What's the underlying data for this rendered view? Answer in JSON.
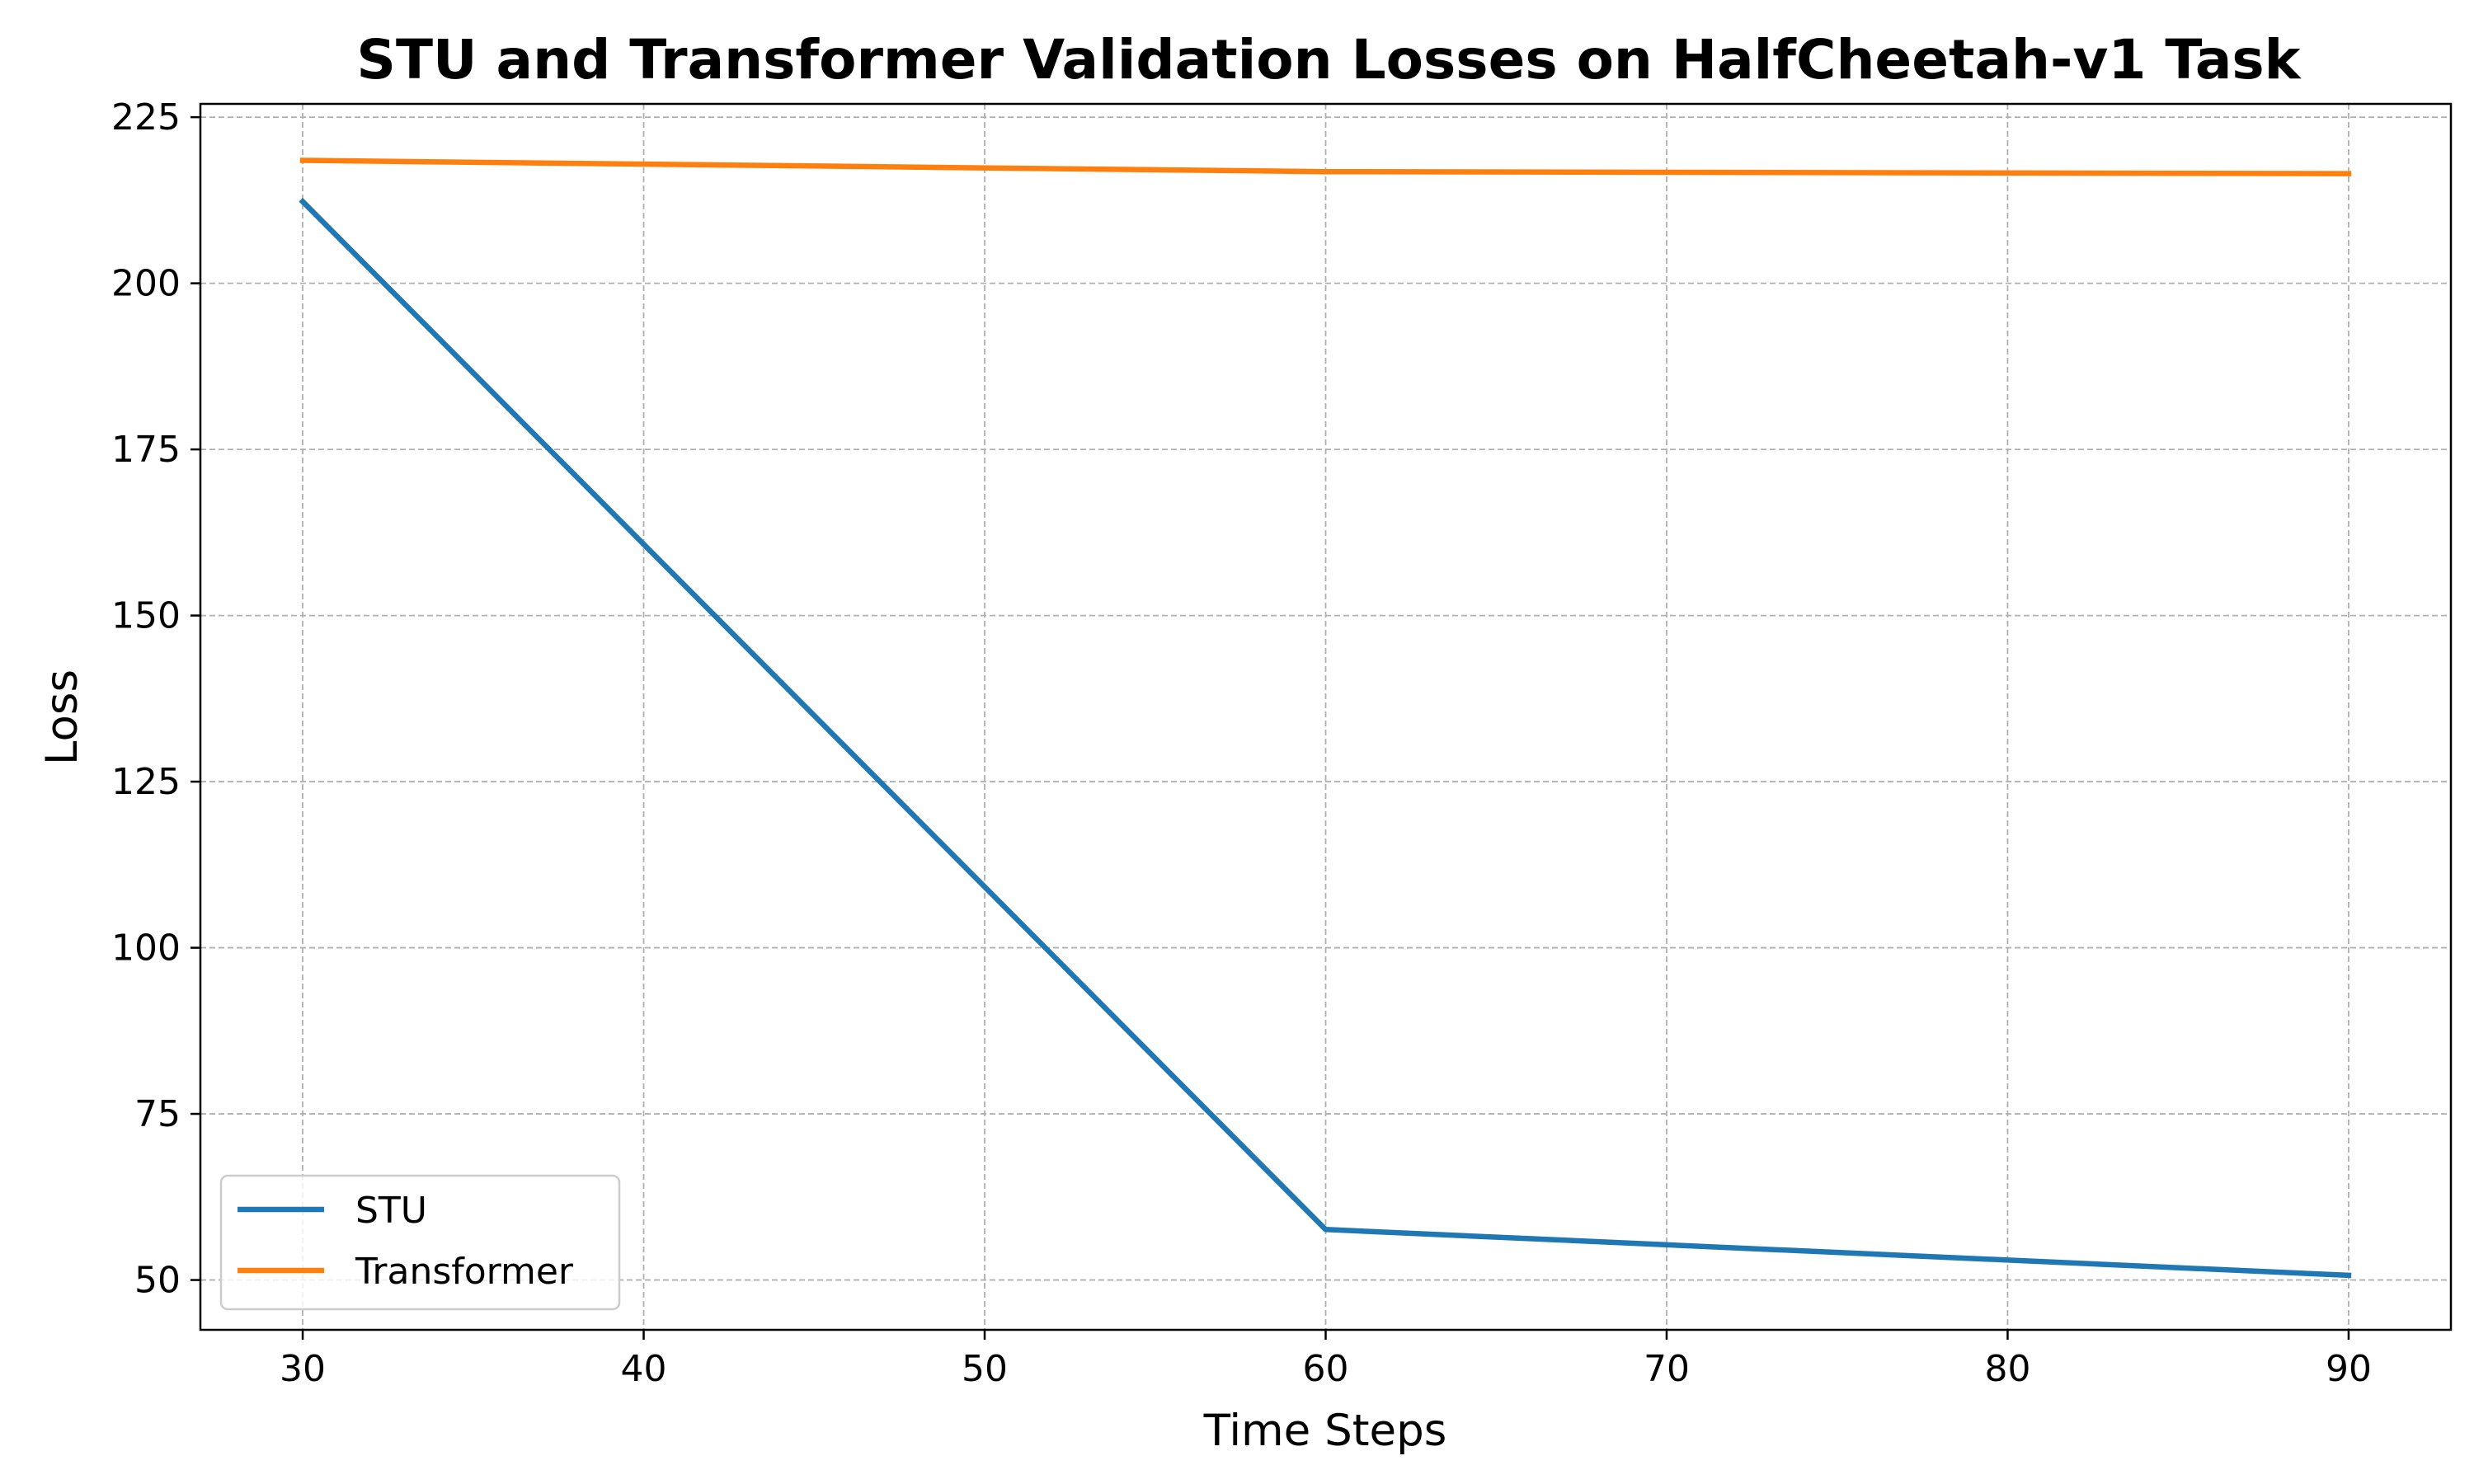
{
  "chart_data": {
    "type": "line",
    "title": "STU and Transformer Validation Losses on HalfCheetah-v1 Task",
    "xlabel": "Time Steps",
    "ylabel": "Loss",
    "x": [
      30,
      60,
      90
    ],
    "series": [
      {
        "name": "STU",
        "values": [
          212.3,
          57.6,
          50.7
        ],
        "color": "#1f77b4"
      },
      {
        "name": "Transformer",
        "values": [
          218.5,
          216.8,
          216.5
        ],
        "color": "#ff7f0e"
      }
    ],
    "xticks": [
      30,
      40,
      50,
      60,
      70,
      80,
      90
    ],
    "yticks": [
      50,
      75,
      100,
      125,
      150,
      175,
      200,
      225
    ],
    "xlim": [
      27,
      93
    ],
    "ylim": [
      42.5,
      227
    ],
    "grid": true,
    "legend_position": "lower-left"
  }
}
